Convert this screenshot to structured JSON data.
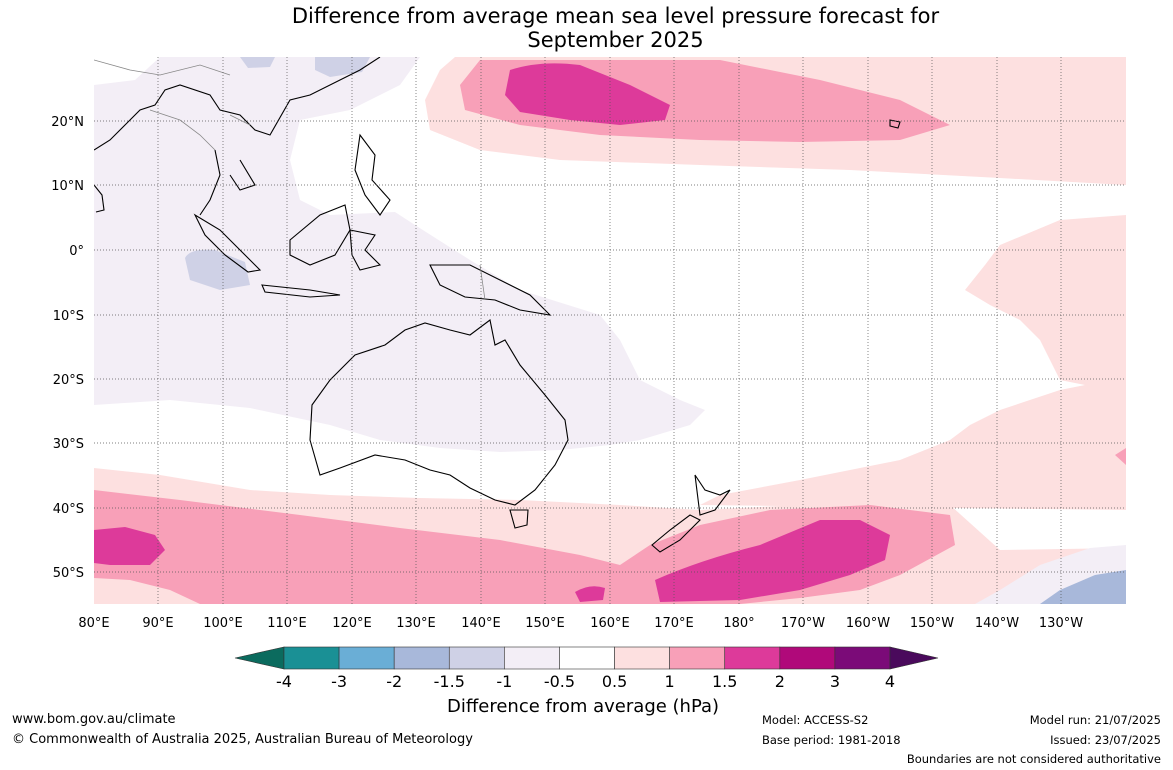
{
  "title": {
    "line1": "Difference from average mean sea level pressure forecast for",
    "line2": "September 2025"
  },
  "axes": {
    "longitude_ticks": [
      "80°E",
      "90°E",
      "100°E",
      "110°E",
      "120°E",
      "130°E",
      "140°E",
      "150°E",
      "160°E",
      "170°E",
      "180°",
      "170°W",
      "160°W",
      "150°W",
      "140°W",
      "130°W"
    ],
    "latitude_ticks": [
      "20°N",
      "10°N",
      "0°",
      "10°S",
      "20°S",
      "30°S",
      "40°S",
      "50°S"
    ]
  },
  "colorbar": {
    "title": "Difference from average (hPa)",
    "labels": [
      "-4",
      "-3",
      "-2",
      "-1.5",
      "-1",
      "-0.5",
      "0.5",
      "1",
      "1.5",
      "2",
      "3",
      "4"
    ],
    "colors": [
      "#0b6b5e",
      "#1a9095",
      "#6aaed6",
      "#a8b8da",
      "#cfd1e6",
      "#f3eef6",
      "#ffffff",
      "#fde0e0",
      "#f8a0b8",
      "#dd3a9a",
      "#b0097a",
      "#7b0b78",
      "#4a0a5c"
    ]
  },
  "footer": {
    "website": "www.bom.gov.au/climate",
    "copyright": "© Commonwealth of Australia 2025, Australian Bureau of Meteorology",
    "model": "Model: ACCESS-S2",
    "base_period": "Base period: 1981-2018",
    "model_run": "Model run: 21/07/2025",
    "issued": "Issued: 23/07/2025",
    "disclaimer": "Boundaries are not considered authoritative"
  }
}
